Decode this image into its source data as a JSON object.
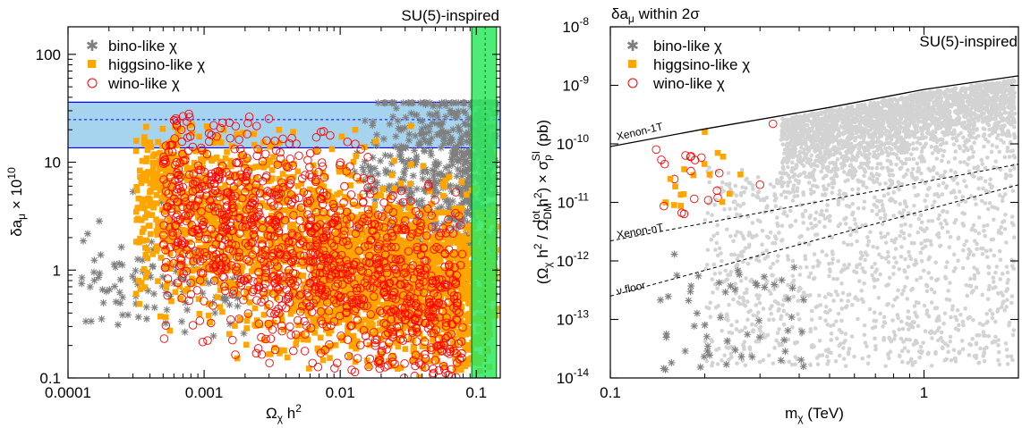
{
  "chart_data": [
    {
      "type": "scatter",
      "title": "SU(5)-inspired",
      "xlabel": "Ω_χ h^2",
      "ylabel": "δa_μ × 10^10",
      "xscale": "log",
      "yscale": "log",
      "xlim": [
        0.0001,
        0.15
      ],
      "ylim": [
        0.1,
        180
      ],
      "xticks": [
        {
          "v": 0.0001,
          "label": "0.0001"
        },
        {
          "v": 0.001,
          "label": "0.001"
        },
        {
          "v": 0.01,
          "label": "0.01"
        },
        {
          "v": 0.1,
          "label": "0.1"
        }
      ],
      "yticks": [
        {
          "v": 0.1,
          "label": "0.1"
        },
        {
          "v": 1,
          "label": "1"
        },
        {
          "v": 10,
          "label": "10"
        },
        {
          "v": 100,
          "label": "100"
        }
      ],
      "legend_position": "top-left",
      "series": [
        {
          "name": "bino-like χ",
          "marker": "star",
          "color": "#7f7f7f"
        },
        {
          "name": "higgsino-like χ",
          "marker": "square",
          "color": "#ffa500"
        },
        {
          "name": "wino-like χ",
          "marker": "circle-open",
          "color": "#ff0000"
        }
      ],
      "bands": [
        {
          "axis": "y",
          "range": [
            13.6,
            36.0
          ],
          "center": 24.8,
          "fill": "#a6d4ee",
          "edge": "#0000ff"
        },
        {
          "axis": "x",
          "range": [
            0.0926,
            0.1406
          ],
          "center": 0.1162,
          "fill": "#2ee85f",
          "edge": "#008000"
        }
      ],
      "representative_points": [
        {
          "series": "bino-like χ",
          "points": [
            [
              0.0002,
              1.05
            ],
            [
              0.0004,
              0.9
            ],
            [
              0.0006,
              1.3
            ],
            [
              0.05,
              12
            ],
            [
              0.08,
              20
            ],
            [
              0.1,
              8
            ],
            [
              0.12,
              5
            ]
          ]
        },
        {
          "series": "higgsino-like χ",
          "points": [
            [
              0.0005,
              18
            ],
            [
              0.001,
              6
            ],
            [
              0.003,
              2
            ],
            [
              0.01,
              1
            ],
            [
              0.03,
              0.9
            ],
            [
              0.06,
              0.7
            ],
            [
              0.1,
              1
            ]
          ]
        },
        {
          "series": "wino-like χ",
          "points": [
            [
              0.0007,
              26
            ],
            [
              0.001,
              5
            ],
            [
              0.002,
              1.5
            ],
            [
              0.005,
              0.8
            ],
            [
              0.01,
              0.5
            ],
            [
              0.02,
              0.3
            ],
            [
              0.05,
              0.18
            ]
          ]
        }
      ]
    },
    {
      "type": "scatter",
      "title": "SU(5)-inspired",
      "subtitle": "δa_μ within 2σ",
      "xlabel": "m_χ (TeV)",
      "ylabel": "(Ω_χ h^2 / Ω_DM^tot h^2) × σ_p^SI (pb)",
      "xscale": "log",
      "yscale": "log",
      "xlim": [
        0.1,
        2.0
      ],
      "ylim": [
        1e-14,
        1e-08
      ],
      "xticks": [
        {
          "v": 0.1,
          "label": "0.1"
        },
        {
          "v": 1,
          "label": "1"
        }
      ],
      "yticks": [
        {
          "exp": -14,
          "label": "10",
          "sup": "-14"
        },
        {
          "exp": -13,
          "label": "10",
          "sup": "-13"
        },
        {
          "exp": -12,
          "label": "10",
          "sup": "-12"
        },
        {
          "exp": -11,
          "label": "10",
          "sup": "-11"
        },
        {
          "exp": -10,
          "label": "10",
          "sup": "-10"
        },
        {
          "exp": -9,
          "label": "10",
          "sup": "-9"
        },
        {
          "exp": -8,
          "label": "10",
          "sup": "-8"
        }
      ],
      "legend_position": "top-left",
      "series": [
        {
          "name": "bino-like χ",
          "marker": "star",
          "color": "#7f7f7f"
        },
        {
          "name": "higgsino-like χ",
          "marker": "square",
          "color": "#ffa500"
        },
        {
          "name": "wino-like χ",
          "marker": "circle-open",
          "color": "#ff0000"
        },
        {
          "name": "",
          "marker": "dot",
          "color": "#d3d3d3"
        }
      ],
      "limit_curves": [
        {
          "name": "Xenon-1T",
          "style": "solid",
          "points": [
            [
              0.1,
              9e-11
            ],
            [
              0.2,
              1.8e-10
            ],
            [
              0.5,
              4.2e-10
            ],
            [
              1.0,
              8.5e-10
            ],
            [
              2.0,
              1.45e-09
            ]
          ]
        },
        {
          "name": "Xenon-nT",
          "style": "dashed",
          "points": [
            [
              0.1,
              2.2e-12
            ],
            [
              2.0,
              4.5e-11
            ]
          ]
        },
        {
          "name": "ν floor",
          "style": "dashed",
          "points": [
            [
              0.1,
              2.5e-13
            ],
            [
              2.0,
              2e-11
            ]
          ]
        }
      ],
      "representative_points": [
        {
          "series": "bino-like χ",
          "points": [
            [
              0.16,
              1.3e-12
            ],
            [
              0.18,
              3e-13
            ],
            [
              0.2,
              8e-14
            ],
            [
              0.25,
              3e-14
            ],
            [
              0.3,
              5e-14
            ],
            [
              0.35,
              2e-14
            ]
          ]
        },
        {
          "series": "higgsino-like χ",
          "points": [
            [
              0.15,
              1e-11
            ],
            [
              0.2,
              1.6e-10
            ],
            [
              0.22,
              7e-11
            ],
            [
              0.24,
              1.4e-11
            ],
            [
              0.26,
              3e-11
            ]
          ]
        },
        {
          "series": "wino-like χ",
          "points": [
            [
              0.14,
              8e-11
            ],
            [
              0.16,
              2.5e-11
            ],
            [
              0.18,
              6e-11
            ],
            [
              0.22,
              1.2e-11
            ],
            [
              0.3,
              2e-11
            ],
            [
              0.33,
              2.2e-10
            ]
          ]
        }
      ]
    }
  ]
}
